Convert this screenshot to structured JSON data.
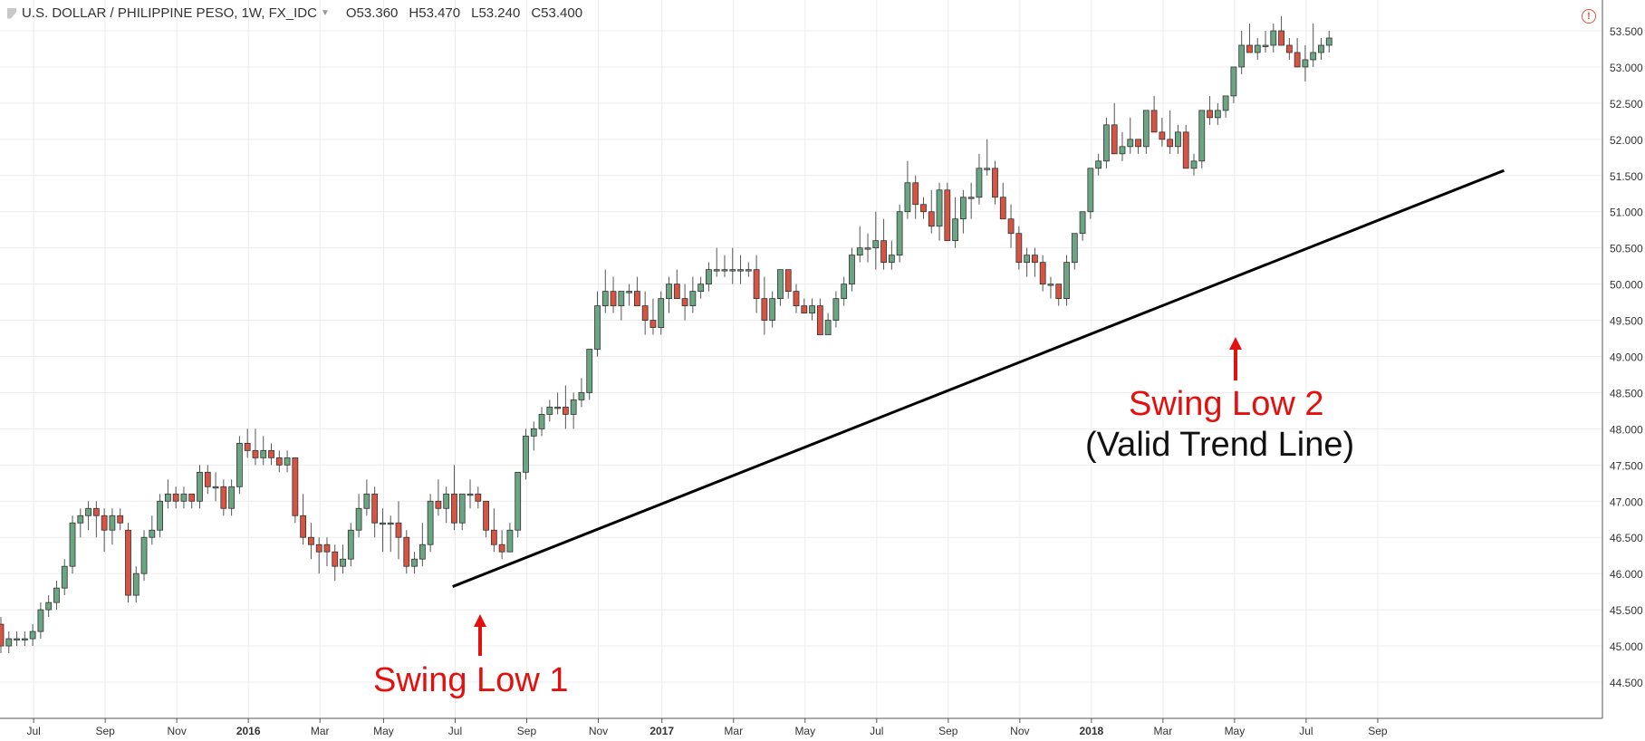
{
  "header": {
    "symbol": "U.S. DOLLAR / PHILIPPINE PESO, 1W, FX_IDC",
    "open": "O53.360",
    "high": "H53.470",
    "low": "L53.240",
    "close": "C53.400",
    "alert_icon": "exclamation-circle-icon"
  },
  "annotations": {
    "swing_low_1": "Swing Low 1",
    "swing_low_2": "Swing Low 2",
    "valid_trend_line": "(Valid Trend Line)"
  },
  "colors": {
    "up_candle": "#6ba583",
    "down_candle": "#d75442",
    "trend_line": "#000000",
    "annotation_red": "#e4100e"
  },
  "chart_data": {
    "type": "candlestick",
    "title": "U.S. DOLLAR / PHILIPPINE PESO, 1W, FX_IDC",
    "ylim": [
      44.1,
      53.7
    ],
    "y_axis_side": "right",
    "y_ticks": [
      "53.500",
      "53.000",
      "52.500",
      "52.000",
      "51.500",
      "51.000",
      "50.500",
      "50.000",
      "49.500",
      "49.000",
      "48.500",
      "48.000",
      "47.500",
      "47.000",
      "46.500",
      "46.000",
      "45.500",
      "45.000",
      "44.500"
    ],
    "x_ticks": [
      {
        "label": "Jul",
        "index": 4,
        "bold": false
      },
      {
        "label": "Sep",
        "index": 13,
        "bold": false
      },
      {
        "label": "Nov",
        "index": 22,
        "bold": false
      },
      {
        "label": "2016",
        "index": 31,
        "bold": true
      },
      {
        "label": "Mar",
        "index": 40,
        "bold": false
      },
      {
        "label": "May",
        "index": 48,
        "bold": false
      },
      {
        "label": "Jul",
        "index": 57,
        "bold": false
      },
      {
        "label": "Sep",
        "index": 66,
        "bold": false
      },
      {
        "label": "Nov",
        "index": 75,
        "bold": false
      },
      {
        "label": "2017",
        "index": 83,
        "bold": true
      },
      {
        "label": "Mar",
        "index": 92,
        "bold": false
      },
      {
        "label": "May",
        "index": 101,
        "bold": false
      },
      {
        "label": "Jul",
        "index": 110,
        "bold": false
      },
      {
        "label": "Sep",
        "index": 119,
        "bold": false
      },
      {
        "label": "Nov",
        "index": 128,
        "bold": false
      },
      {
        "label": "2018",
        "index": 137,
        "bold": true
      },
      {
        "label": "Mar",
        "index": 146,
        "bold": false
      },
      {
        "label": "May",
        "index": 155,
        "bold": false
      },
      {
        "label": "Jul",
        "index": 164,
        "bold": false
      },
      {
        "label": "Sep",
        "index": 173,
        "bold": false
      }
    ],
    "candles": [
      [
        45.3,
        45.4,
        44.9,
        45.0
      ],
      [
        45.0,
        45.2,
        44.9,
        45.1
      ],
      [
        45.1,
        45.2,
        45.0,
        45.1
      ],
      [
        45.1,
        45.2,
        45.0,
        45.1
      ],
      [
        45.1,
        45.3,
        45.0,
        45.2
      ],
      [
        45.2,
        45.6,
        45.1,
        45.5
      ],
      [
        45.5,
        45.7,
        45.4,
        45.6
      ],
      [
        45.6,
        45.9,
        45.5,
        45.8
      ],
      [
        45.8,
        46.2,
        45.7,
        46.1
      ],
      [
        46.1,
        46.8,
        46.0,
        46.7
      ],
      [
        46.7,
        46.9,
        46.5,
        46.8
      ],
      [
        46.8,
        47.0,
        46.6,
        46.9
      ],
      [
        46.9,
        47.0,
        46.5,
        46.8
      ],
      [
        46.8,
        46.9,
        46.3,
        46.6
      ],
      [
        46.6,
        46.9,
        46.4,
        46.8
      ],
      [
        46.8,
        46.9,
        46.6,
        46.7
      ],
      [
        46.6,
        46.7,
        45.6,
        45.7
      ],
      [
        45.7,
        46.1,
        45.6,
        46.0
      ],
      [
        46.0,
        46.6,
        45.9,
        46.5
      ],
      [
        46.5,
        46.8,
        46.4,
        46.6
      ],
      [
        46.6,
        47.1,
        46.5,
        47.0
      ],
      [
        47.0,
        47.3,
        46.9,
        47.1
      ],
      [
        47.1,
        47.2,
        46.9,
        47.0
      ],
      [
        47.0,
        47.2,
        46.9,
        47.1
      ],
      [
        47.1,
        47.1,
        46.9,
        47.0
      ],
      [
        47.0,
        47.5,
        46.9,
        47.4
      ],
      [
        47.4,
        47.5,
        47.1,
        47.2
      ],
      [
        47.2,
        47.4,
        47.0,
        47.2
      ],
      [
        47.2,
        47.3,
        46.8,
        46.9
      ],
      [
        46.9,
        47.3,
        46.8,
        47.2
      ],
      [
        47.2,
        47.9,
        47.1,
        47.8
      ],
      [
        47.8,
        48.0,
        47.6,
        47.7
      ],
      [
        47.7,
        48.0,
        47.5,
        47.6
      ],
      [
        47.6,
        47.9,
        47.5,
        47.7
      ],
      [
        47.7,
        47.8,
        47.5,
        47.6
      ],
      [
        47.6,
        47.7,
        47.4,
        47.5
      ],
      [
        47.5,
        47.7,
        47.4,
        47.6
      ],
      [
        47.6,
        47.6,
        46.7,
        46.8
      ],
      [
        46.8,
        47.1,
        46.4,
        46.5
      ],
      [
        46.5,
        46.7,
        46.2,
        46.4
      ],
      [
        46.4,
        46.5,
        46.0,
        46.3
      ],
      [
        46.4,
        46.5,
        46.1,
        46.3
      ],
      [
        46.3,
        46.4,
        45.9,
        46.1
      ],
      [
        46.1,
        46.4,
        46.0,
        46.2
      ],
      [
        46.2,
        46.7,
        46.1,
        46.6
      ],
      [
        46.6,
        47.1,
        46.5,
        46.9
      ],
      [
        46.9,
        47.3,
        46.8,
        47.1
      ],
      [
        47.1,
        47.2,
        46.5,
        46.7
      ],
      [
        46.7,
        46.9,
        46.3,
        46.7
      ],
      [
        46.7,
        46.8,
        46.3,
        46.7
      ],
      [
        46.7,
        47.0,
        46.2,
        46.5
      ],
      [
        46.5,
        46.6,
        46.0,
        46.1
      ],
      [
        46.1,
        46.3,
        46.0,
        46.2
      ],
      [
        46.2,
        46.7,
        46.1,
        46.4
      ],
      [
        46.4,
        47.1,
        46.3,
        47.0
      ],
      [
        47.0,
        47.3,
        46.8,
        46.9
      ],
      [
        46.9,
        47.2,
        46.7,
        47.1
      ],
      [
        47.1,
        47.5,
        46.6,
        46.7
      ],
      [
        46.7,
        47.1,
        46.6,
        47.1
      ],
      [
        47.1,
        47.3,
        46.9,
        47.1
      ],
      [
        47.1,
        47.2,
        46.9,
        47.0
      ],
      [
        47.0,
        47.0,
        46.5,
        46.6
      ],
      [
        46.6,
        46.9,
        46.3,
        46.4
      ],
      [
        46.4,
        46.6,
        46.2,
        46.3
      ],
      [
        46.3,
        46.7,
        46.3,
        46.6
      ],
      [
        46.6,
        47.4,
        46.5,
        47.4
      ],
      [
        47.4,
        48.0,
        47.3,
        47.9
      ],
      [
        47.9,
        48.1,
        47.7,
        48.0
      ],
      [
        48.0,
        48.3,
        47.9,
        48.2
      ],
      [
        48.2,
        48.4,
        48.1,
        48.3
      ],
      [
        48.3,
        48.5,
        48.2,
        48.3
      ],
      [
        48.3,
        48.6,
        48.0,
        48.2
      ],
      [
        48.2,
        48.5,
        48.0,
        48.4
      ],
      [
        48.4,
        48.7,
        48.3,
        48.5
      ],
      [
        48.5,
        49.1,
        48.4,
        49.1
      ],
      [
        49.1,
        49.9,
        49.0,
        49.7
      ],
      [
        49.7,
        50.2,
        49.6,
        49.9
      ],
      [
        49.9,
        50.1,
        49.6,
        49.7
      ],
      [
        49.7,
        49.9,
        49.5,
        49.9
      ],
      [
        49.9,
        50.0,
        49.7,
        49.9
      ],
      [
        49.9,
        50.1,
        49.7,
        49.7
      ],
      [
        49.7,
        49.9,
        49.3,
        49.5
      ],
      [
        49.5,
        49.8,
        49.3,
        49.4
      ],
      [
        49.4,
        49.9,
        49.3,
        49.8
      ],
      [
        49.8,
        50.1,
        49.6,
        50.0
      ],
      [
        50.0,
        50.2,
        49.8,
        49.8
      ],
      [
        49.8,
        50.0,
        49.5,
        49.7
      ],
      [
        49.7,
        50.1,
        49.6,
        49.9
      ],
      [
        49.9,
        50.1,
        49.8,
        50.0
      ],
      [
        50.0,
        50.3,
        49.9,
        50.2
      ],
      [
        50.2,
        50.5,
        50.1,
        50.2
      ],
      [
        50.2,
        50.4,
        50.1,
        50.2
      ],
      [
        50.2,
        50.5,
        50.0,
        50.2
      ],
      [
        50.2,
        50.4,
        50.0,
        50.2
      ],
      [
        50.2,
        50.3,
        50.1,
        50.2
      ],
      [
        50.2,
        50.4,
        49.6,
        49.8
      ],
      [
        49.8,
        50.1,
        49.3,
        49.5
      ],
      [
        49.5,
        49.9,
        49.4,
        49.8
      ],
      [
        49.8,
        50.2,
        49.7,
        50.2
      ],
      [
        50.2,
        50.2,
        49.8,
        49.9
      ],
      [
        49.9,
        50.0,
        49.6,
        49.7
      ],
      [
        49.7,
        49.8,
        49.6,
        49.6
      ],
      [
        49.6,
        49.8,
        49.5,
        49.7
      ],
      [
        49.7,
        49.8,
        49.3,
        49.3
      ],
      [
        49.3,
        49.6,
        49.3,
        49.5
      ],
      [
        49.5,
        49.9,
        49.4,
        49.8
      ],
      [
        49.8,
        50.1,
        49.7,
        50.0
      ],
      [
        50.0,
        50.5,
        49.9,
        50.4
      ],
      [
        50.4,
        50.8,
        50.3,
        50.5
      ],
      [
        50.5,
        50.7,
        50.3,
        50.5
      ],
      [
        50.5,
        51.0,
        50.2,
        50.6
      ],
      [
        50.6,
        50.9,
        50.2,
        50.3
      ],
      [
        50.3,
        50.6,
        50.2,
        50.4
      ],
      [
        50.4,
        51.1,
        50.3,
        51.0
      ],
      [
        51.0,
        51.7,
        50.9,
        51.4
      ],
      [
        51.4,
        51.5,
        50.9,
        51.1
      ],
      [
        51.1,
        51.2,
        50.9,
        51.0
      ],
      [
        51.0,
        51.3,
        50.7,
        50.8
      ],
      [
        50.8,
        51.4,
        50.6,
        51.3
      ],
      [
        51.3,
        51.4,
        50.6,
        50.6
      ],
      [
        50.6,
        51.2,
        50.5,
        50.9
      ],
      [
        50.9,
        51.3,
        50.7,
        51.2
      ],
      [
        51.2,
        51.4,
        50.9,
        51.2
      ],
      [
        51.2,
        51.8,
        51.1,
        51.6
      ],
      [
        51.6,
        52.0,
        51.5,
        51.6
      ],
      [
        51.6,
        51.7,
        51.1,
        51.2
      ],
      [
        51.2,
        51.4,
        50.9,
        50.9
      ],
      [
        50.9,
        51.1,
        50.5,
        50.7
      ],
      [
        50.7,
        50.8,
        50.2,
        50.3
      ],
      [
        50.3,
        50.5,
        50.1,
        50.4
      ],
      [
        50.4,
        50.5,
        50.1,
        50.3
      ],
      [
        50.3,
        50.4,
        49.9,
        50.0
      ],
      [
        50.0,
        50.1,
        49.8,
        50.0
      ],
      [
        50.0,
        50.0,
        49.7,
        49.8
      ],
      [
        49.8,
        50.4,
        49.7,
        50.3
      ],
      [
        50.3,
        50.7,
        50.2,
        50.7
      ],
      [
        50.7,
        51.0,
        50.6,
        51.0
      ],
      [
        51.0,
        51.6,
        50.9,
        51.6
      ],
      [
        51.6,
        51.8,
        51.5,
        51.7
      ],
      [
        51.7,
        52.3,
        51.6,
        52.2
      ],
      [
        52.2,
        52.5,
        51.8,
        51.8
      ],
      [
        51.8,
        52.1,
        51.7,
        51.9
      ],
      [
        51.9,
        52.3,
        51.8,
        52.0
      ],
      [
        52.0,
        52.0,
        51.8,
        51.9
      ],
      [
        51.9,
        52.4,
        51.8,
        52.4
      ],
      [
        52.4,
        52.6,
        52.1,
        52.1
      ],
      [
        52.1,
        52.3,
        51.9,
        52.0
      ],
      [
        52.0,
        52.4,
        51.8,
        51.9
      ],
      [
        51.9,
        52.2,
        51.8,
        52.1
      ],
      [
        52.1,
        52.2,
        51.6,
        51.6
      ],
      [
        51.6,
        51.8,
        51.5,
        51.7
      ],
      [
        51.7,
        52.4,
        51.6,
        52.4
      ],
      [
        52.4,
        52.6,
        52.2,
        52.3
      ],
      [
        52.3,
        52.5,
        52.2,
        52.4
      ],
      [
        52.4,
        52.6,
        52.3,
        52.6
      ],
      [
        52.6,
        53.0,
        52.5,
        53.0
      ],
      [
        53.0,
        53.5,
        52.9,
        53.3
      ],
      [
        53.3,
        53.6,
        53.2,
        53.2
      ],
      [
        53.2,
        53.4,
        53.1,
        53.3
      ],
      [
        53.3,
        53.5,
        53.2,
        53.3
      ],
      [
        53.3,
        53.6,
        53.2,
        53.5
      ],
      [
        53.5,
        53.7,
        53.3,
        53.3
      ],
      [
        53.3,
        53.4,
        53.1,
        53.2
      ],
      [
        53.2,
        53.4,
        53.0,
        53.0
      ],
      [
        53.0,
        53.3,
        52.8,
        53.1
      ],
      [
        53.1,
        53.6,
        53.0,
        53.2
      ],
      [
        53.2,
        53.4,
        53.1,
        53.3
      ],
      [
        53.3,
        53.5,
        53.2,
        53.4
      ]
    ],
    "trend_line": {
      "from": {
        "index": 56,
        "price": 45.82
      },
      "to": {
        "index": 189,
        "price": 51.57
      }
    },
    "swing_lows": [
      {
        "label": "Swing Low 1",
        "index": 56,
        "price": 45.82
      },
      {
        "label": "Swing Low 2",
        "index": 145,
        "price": 49.78
      }
    ]
  }
}
